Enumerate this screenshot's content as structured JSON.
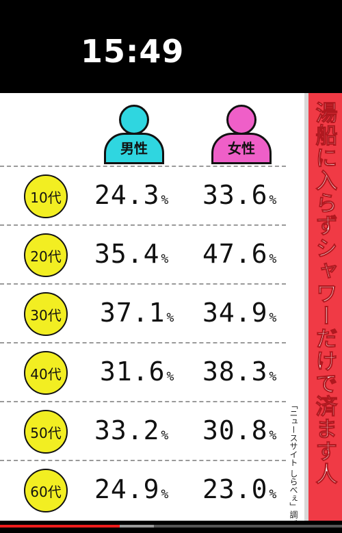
{
  "status_bar": {
    "time": "15:49"
  },
  "banner": {
    "title": "湯船に入らずシャワーだけで済ます人"
  },
  "source_note": "「ニュースサイト しらべぇ」調べ",
  "headers": {
    "male": "男性",
    "female": "女性"
  },
  "colors": {
    "male": "#2fd6e0",
    "female": "#ef5fc8",
    "badge": "#f2ee22",
    "banner": "#f03a45"
  },
  "rows": [
    {
      "age": "10代",
      "male": "24.3",
      "female": "33.6"
    },
    {
      "age": "20代",
      "male": "35.4",
      "female": "47.6"
    },
    {
      "age": "30代",
      "male": "37.1",
      "female": "34.9"
    },
    {
      "age": "40代",
      "male": "31.6",
      "female": "38.3"
    },
    {
      "age": "50代",
      "male": "33.2",
      "female": "30.8"
    },
    {
      "age": "60代",
      "male": "24.9",
      "female": "23.0"
    }
  ],
  "unit": "%",
  "video_progress": {
    "played": 0.35,
    "buffered": 0.45
  }
}
